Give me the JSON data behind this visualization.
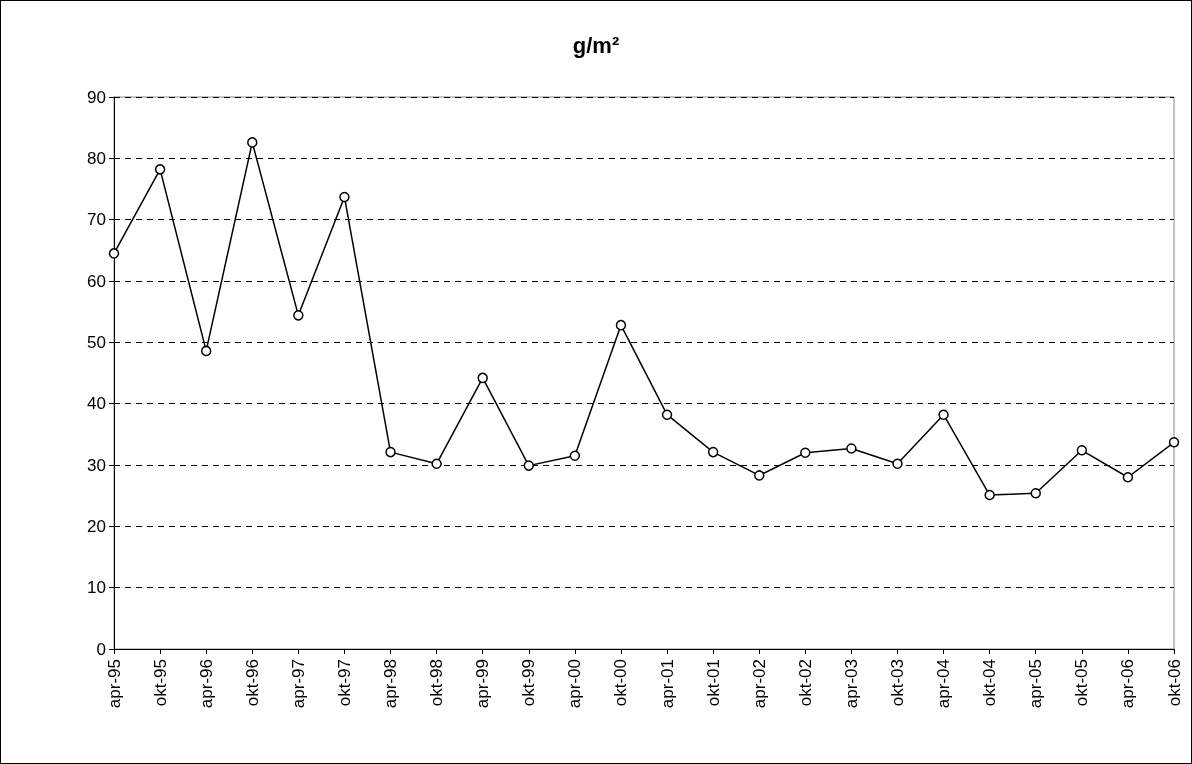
{
  "chart_data": {
    "type": "line",
    "title": "g/m²",
    "categories": [
      "apr-95",
      "okt-95",
      "apr-96",
      "okt-96",
      "apr-97",
      "okt-97",
      "apr-98",
      "okt-98",
      "apr-99",
      "okt-99",
      "apr-00",
      "okt-00",
      "apr-01",
      "okt-01",
      "apr-02",
      "okt-02",
      "apr-03",
      "okt-03",
      "apr-04",
      "okt-04",
      "apr-05",
      "okt-05",
      "apr-06",
      "okt-06"
    ],
    "series": [
      {
        "color": "#000000",
        "values": [
          64.5,
          78.2,
          48.6,
          82.6,
          54.4,
          73.7,
          32.1,
          30.2,
          44.2,
          29.9,
          31.5,
          52.8,
          38.2,
          32.1,
          28.3,
          32.0,
          32.7,
          30.2,
          38.2,
          25.1,
          25.4,
          32.4,
          28.0,
          33.7
        ]
      }
    ],
    "ylim": [
      0,
      90
    ],
    "yticks": [
      0,
      10,
      20,
      30,
      40,
      50,
      60,
      70,
      80,
      90
    ],
    "grid": "y",
    "marker": "circle",
    "line_style": "solid"
  }
}
